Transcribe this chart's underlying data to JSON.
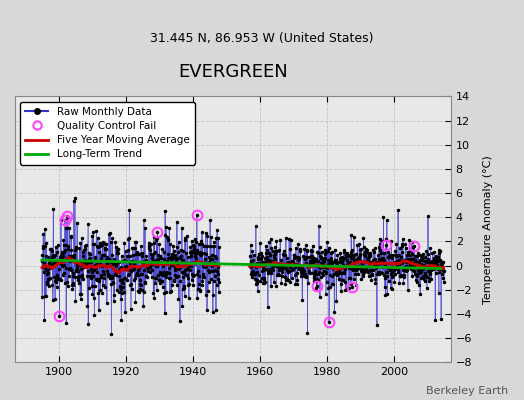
{
  "title": "EVERGREEN",
  "subtitle": "31.445 N, 86.953 W (United States)",
  "ylabel": "Temperature Anomaly (°C)",
  "credit": "Berkeley Earth",
  "xlim": [
    1887,
    2017
  ],
  "ylim": [
    -8,
    14
  ],
  "yticks": [
    -8,
    -6,
    -4,
    -2,
    0,
    2,
    4,
    6,
    8,
    10,
    12,
    14
  ],
  "xticks": [
    1900,
    1920,
    1940,
    1960,
    1980,
    2000
  ],
  "period1_start": 1895,
  "period1_end": 1947,
  "period2_start": 1957,
  "period2_end": 2014,
  "raw_color": "#3333cc",
  "ma_color": "#cc0000",
  "trend_color": "#00aa00",
  "qc_color": "#ff44ff",
  "background_color": "#d8d8d8",
  "plot_bg_color": "#e8e8e8",
  "grid_color": "#bbbbbb",
  "seed": 17
}
